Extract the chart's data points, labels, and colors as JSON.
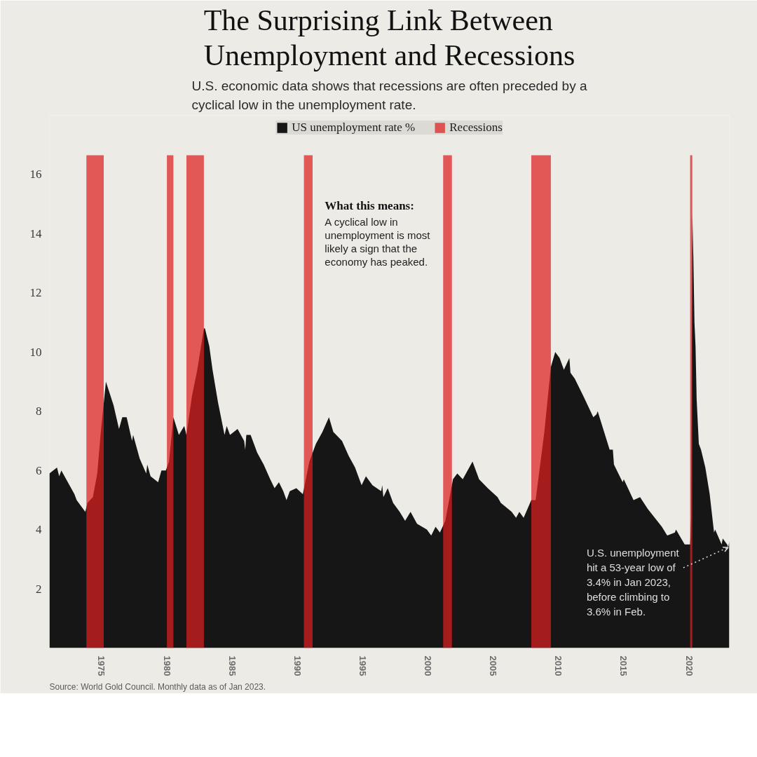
{
  "chart_data": {
    "type": "area",
    "title": "The Surprising Link Between Unemployment and Recessions",
    "subtitle": "U.S. economic data shows that recessions are often preceded by a cyclical low in the unemployment rate.",
    "x": [
      "1971-01",
      "1971-08",
      "1971-10",
      "1971-12",
      "1972-12",
      "1973-02",
      "1973-10",
      "1973-12",
      "1974-05",
      "1974-09",
      "1974-12",
      "1975-05",
      "1975-12",
      "1976-05",
      "1976-08",
      "1976-12",
      "1977-05",
      "1977-06",
      "1977-12",
      "1978-06",
      "1978-07",
      "1978-10",
      "1979-05",
      "1979-08",
      "1979-12",
      "1980-03",
      "1980-07",
      "1980-12",
      "1981-05",
      "1981-07",
      "1981-12",
      "1982-05",
      "1982-11",
      "1982-12",
      "1983-04",
      "1983-07",
      "1983-12",
      "1984-06",
      "1984-08",
      "1984-11",
      "1985-06",
      "1985-12",
      "1986-01",
      "1986-02",
      "1986-06",
      "1986-12",
      "1987-06",
      "1987-12",
      "1988-04",
      "1988-08",
      "1988-12",
      "1989-03",
      "1989-06",
      "1989-12",
      "1990-06",
      "1990-12",
      "1991-06",
      "1991-12",
      "1992-06",
      "1992-10",
      "1993-06",
      "1993-12",
      "1994-06",
      "1994-12",
      "1995-04",
      "1995-10",
      "1996-06",
      "1996-07",
      "1996-08",
      "1996-12",
      "1997-05",
      "1997-11",
      "1998-04",
      "1998-09",
      "1999-03",
      "1999-12",
      "2000-04",
      "2000-08",
      "2000-12",
      "2001-05",
      "2001-12",
      "2002-04",
      "2002-09",
      "2003-06",
      "2003-12",
      "2004-08",
      "2005-05",
      "2005-08",
      "2006-06",
      "2006-10",
      "2007-01",
      "2007-05",
      "2007-12",
      "2008-04",
      "2008-12",
      "2009-06",
      "2009-10",
      "2010-02",
      "2010-06",
      "2010-11",
      "2010-12",
      "2011-04",
      "2011-12",
      "2012-09",
      "2012-12",
      "2013-01",
      "2013-12",
      "2014-03",
      "2014-04",
      "2014-12",
      "2015-01",
      "2015-10",
      "2016-04",
      "2016-11",
      "2017-12",
      "2018-05",
      "2018-12",
      "2019-01",
      "2019-09",
      "2020-02",
      "2020-03",
      "2020-04",
      "2020-05",
      "2020-06",
      "2020-07",
      "2020-08",
      "2020-10",
      "2020-12",
      "2021-04",
      "2021-08",
      "2021-12",
      "2022-01",
      "2022-07",
      "2022-08",
      "2022-12",
      "2023-01",
      "2023-02"
    ],
    "series": [
      {
        "name": "US unemployment rate %",
        "color": "#161616",
        "values": [
          5.9,
          6.1,
          5.8,
          6.0,
          5.2,
          5.0,
          4.6,
          4.9,
          5.1,
          5.9,
          7.2,
          9.0,
          8.2,
          7.4,
          7.8,
          7.8,
          7.0,
          7.2,
          6.4,
          5.9,
          6.2,
          5.8,
          5.6,
          6.0,
          6.0,
          6.3,
          7.8,
          7.2,
          7.5,
          7.2,
          8.5,
          9.4,
          10.8,
          10.8,
          10.2,
          9.4,
          8.3,
          7.2,
          7.5,
          7.2,
          7.4,
          7.0,
          6.7,
          7.2,
          7.2,
          6.6,
          6.2,
          5.7,
          5.4,
          5.6,
          5.3,
          5.0,
          5.3,
          5.4,
          5.2,
          6.3,
          6.9,
          7.3,
          7.8,
          7.3,
          7.0,
          6.5,
          6.1,
          5.5,
          5.8,
          5.5,
          5.3,
          5.5,
          5.1,
          5.4,
          4.9,
          4.6,
          4.3,
          4.6,
          4.2,
          4.0,
          3.8,
          4.1,
          3.9,
          4.3,
          5.7,
          5.9,
          5.7,
          6.3,
          5.7,
          5.4,
          5.1,
          4.9,
          4.6,
          4.4,
          4.6,
          4.4,
          5.0,
          5.0,
          7.3,
          9.5,
          10.0,
          9.8,
          9.4,
          9.8,
          9.3,
          9.1,
          8.5,
          7.8,
          7.9,
          8.0,
          6.7,
          6.7,
          6.2,
          5.6,
          5.7,
          5.0,
          5.1,
          4.7,
          4.1,
          3.8,
          3.9,
          4.0,
          3.5,
          3.5,
          4.4,
          14.7,
          13.2,
          11.0,
          10.2,
          8.4,
          6.9,
          6.7,
          6.1,
          5.2,
          3.9,
          4.0,
          3.5,
          3.7,
          3.5,
          3.4,
          3.6
        ]
      }
    ],
    "xlim": [
      "1971-01",
      "2023-02"
    ],
    "xticks": [
      "1975",
      "1980",
      "1985",
      "1990",
      "1995",
      "2000",
      "2005",
      "2010",
      "2015",
      "2020"
    ],
    "ylim": [
      0,
      18
    ],
    "yticks": [
      2,
      4,
      6,
      8,
      10,
      12,
      14,
      16
    ],
    "bands": [
      {
        "axis": "x",
        "from": "1973-11",
        "to": "1975-03",
        "label": "Recessions",
        "color": "#dc1e1e"
      },
      {
        "axis": "x",
        "from": "1980-01",
        "to": "1980-07",
        "color": "#dc1e1e"
      },
      {
        "axis": "x",
        "from": "1981-07",
        "to": "1982-11",
        "color": "#dc1e1e"
      },
      {
        "axis": "x",
        "from": "1990-07",
        "to": "1991-03",
        "color": "#dc1e1e"
      },
      {
        "axis": "x",
        "from": "2001-03",
        "to": "2001-11",
        "color": "#dc1e1e"
      },
      {
        "axis": "x",
        "from": "2007-12",
        "to": "2009-06",
        "color": "#dc1e1e"
      },
      {
        "axis": "x",
        "from": "2020-02",
        "to": "2020-04",
        "color": "#dc1e1e"
      }
    ],
    "legend": "top",
    "annotations": [
      "What this means:",
      "A cyclical low in unemployment is most likely a sign that the economy has peaked.",
      {
        "text": "U.S. unemployment hit a 53-year low of 3.4% in Jan 2023, before climbing to 3.6% in Feb.",
        "x": "2023-01",
        "y": 3.4
      },
      "Source: World Gold Council. Monthly data as of Jan 2023."
    ]
  }
}
